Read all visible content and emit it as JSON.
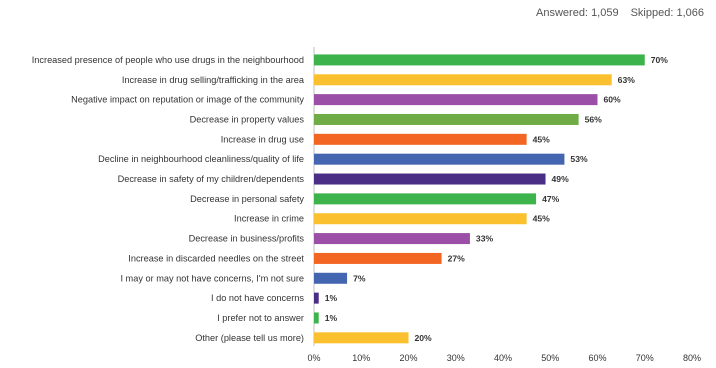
{
  "header": {
    "answered_label": "Answered:",
    "answered_value": "1,059",
    "skipped_label": "Skipped:",
    "skipped_value": "1,066"
  },
  "chart_data": {
    "type": "bar",
    "orientation": "horizontal",
    "categories": [
      "Increased presence of people who use drugs in the neighbourhood",
      "Increase in drug selling/trafficking in the area",
      "Negative impact on reputation or image of the community",
      "Decrease in property values",
      "Increase in drug use",
      "Decline in neighbourhood cleanliness/quality of life",
      "Decrease in safety of my children/dependents",
      "Decrease in personal safety",
      "Increase in crime",
      "Decrease in business/profits",
      "Increase in discarded needles on the street",
      "I may or may not have concerns, I'm not sure",
      "I do not have concerns",
      "I prefer not to answer",
      "Other (please tell us more)"
    ],
    "values": [
      70,
      63,
      60,
      56,
      45,
      53,
      49,
      47,
      45,
      33,
      27,
      7,
      1,
      1,
      20
    ],
    "value_labels": [
      "70%",
      "63%",
      "60%",
      "56%",
      "45%",
      "53%",
      "49%",
      "47%",
      "45%",
      "33%",
      "27%",
      "7%",
      "1%",
      "1%",
      "20%"
    ],
    "colors": [
      "#3cb44b",
      "#fbc02d",
      "#9c4fa6",
      "#6fac46",
      "#f26522",
      "#4465b0",
      "#4a2d85",
      "#3cb44b",
      "#fbc02d",
      "#9c4fa6",
      "#f26522",
      "#4465b0",
      "#4a2d85",
      "#3cb44b",
      "#fbc02d"
    ],
    "xlim": [
      0,
      80
    ],
    "xticks": [
      "0%",
      "10%",
      "20%",
      "30%",
      "40%",
      "50%",
      "60%",
      "70%",
      "80%"
    ],
    "grid": false,
    "legend": "none"
  }
}
